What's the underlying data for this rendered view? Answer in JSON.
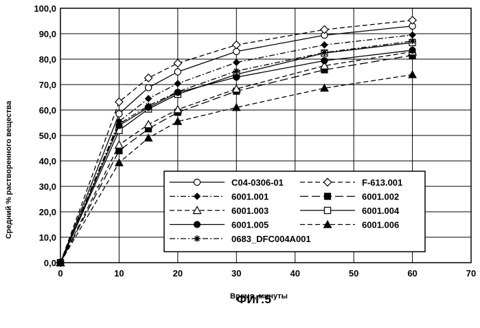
{
  "figure_caption": "ФИГ.5",
  "chart_data": {
    "type": "line",
    "xlabel": "Время, минуты",
    "ylabel": "Средний % растворенного вещества",
    "xlim": [
      0,
      70
    ],
    "ylim": [
      0,
      100
    ],
    "x_ticks": [
      "0",
      "10",
      "20",
      "30",
      "40",
      "50",
      "60",
      "70"
    ],
    "y_ticks": [
      "0,0",
      "10,0",
      "20,0",
      "30,0",
      "40,0",
      "50,0",
      "60,0",
      "70,0",
      "80,0",
      "90,0",
      "100,0"
    ],
    "grid": true,
    "legend_position": "lower-right",
    "x": [
      0,
      10,
      15,
      20,
      30,
      45,
      60
    ],
    "series": [
      {
        "name": "C04-0306-01",
        "marker": "circle-open",
        "line": "solid",
        "values": [
          0,
          58.5,
          68.8,
          75.0,
          83.0,
          89.4,
          93.0
        ]
      },
      {
        "name": "F-613.001",
        "marker": "diamond-open",
        "line": "dashed",
        "values": [
          0,
          63.2,
          72.6,
          78.4,
          85.6,
          91.6,
          95.3
        ]
      },
      {
        "name": "6001.001",
        "marker": "diamond-filled",
        "line": "dashdot",
        "values": [
          0,
          55.5,
          64.5,
          70.4,
          78.7,
          85.6,
          89.5
        ]
      },
      {
        "name": "6001.002",
        "marker": "square-filled",
        "line": "longdash",
        "values": [
          0,
          44.0,
          52.6,
          59.1,
          67.4,
          75.8,
          81.5
        ]
      },
      {
        "name": "6001.003",
        "marker": "triangle-open",
        "line": "dashed",
        "values": [
          0,
          46.3,
          54.3,
          60.2,
          68.3,
          77.4,
          82.9
        ]
      },
      {
        "name": "6001.004",
        "marker": "square-open",
        "line": "solid",
        "values": [
          0,
          52.0,
          60.4,
          66.2,
          74.0,
          82.4,
          86.5
        ]
      },
      {
        "name": "6001.005",
        "marker": "circle-filled",
        "line": "solid",
        "values": [
          0,
          53.9,
          61.0,
          66.9,
          72.9,
          79.4,
          83.5
        ]
      },
      {
        "name": "6001.006",
        "marker": "triangle-filled",
        "line": "dashed",
        "values": [
          0,
          39.3,
          49.0,
          55.5,
          61.0,
          68.6,
          73.9
        ]
      },
      {
        "name": "0683_DFC004A001",
        "marker": "asterisk",
        "line": "dashdot",
        "values": [
          0,
          54.5,
          61.7,
          67.2,
          75.3,
          82.6,
          87.1
        ]
      }
    ]
  }
}
